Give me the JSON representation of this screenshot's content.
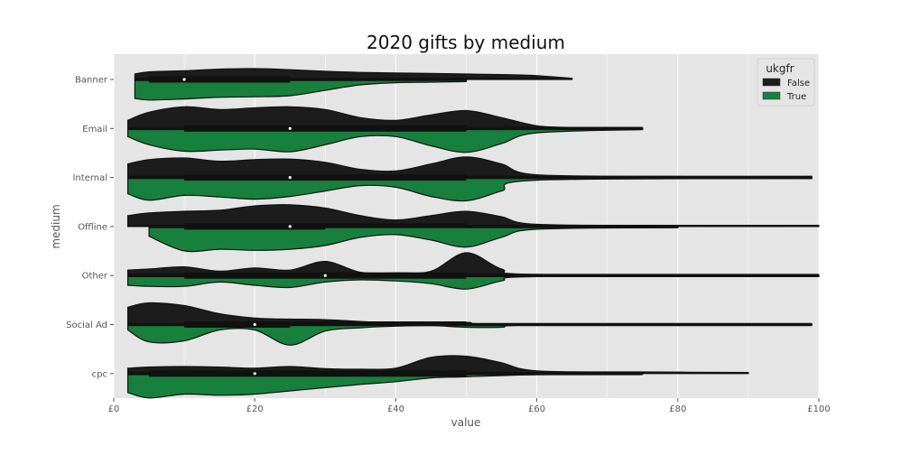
{
  "chart_data": {
    "type": "violin",
    "title": "2020 gifts by medium",
    "xlabel": "value",
    "ylabel": "medium",
    "xlim": [
      0,
      100
    ],
    "x_ticks": [
      0,
      20,
      40,
      60,
      80,
      100
    ],
    "x_tick_labels": [
      "£0",
      "£20",
      "£40",
      "£60",
      "£80",
      "£100"
    ],
    "grid": true,
    "split": true,
    "legend": {
      "title": "ukgfr",
      "placement": "top-right",
      "entries": [
        {
          "label": "False",
          "color": "#1c1c1c"
        },
        {
          "label": "True",
          "color": "#17803d"
        }
      ]
    },
    "categories": [
      "Banner",
      "Email",
      "Internal",
      "Offline",
      "Other",
      "Social Ad",
      "cpc"
    ],
    "series": [
      {
        "name": "False",
        "color": "#1c1c1c",
        "stats": [
          {
            "min": 3,
            "q1": 5,
            "median": 10,
            "q3": 25,
            "max": 65
          },
          {
            "min": 2,
            "q1": 10,
            "median": 25,
            "q3": 50,
            "max": 75
          },
          {
            "min": 2,
            "q1": 10,
            "median": 25,
            "q3": 50,
            "max": 99
          },
          {
            "min": 2,
            "q1": 10,
            "median": 25,
            "q3": 50,
            "max": 100
          },
          {
            "min": 2,
            "q1": 10,
            "median": 30,
            "q3": 50,
            "max": 100
          },
          {
            "min": 2,
            "q1": 10,
            "median": 20,
            "q3": 50,
            "max": 99
          },
          {
            "min": 2,
            "q1": 5,
            "median": 20,
            "q3": 50,
            "max": 90
          }
        ],
        "density": [
          [
            [
              3,
              0.1
            ],
            [
              5,
              0.14
            ],
            [
              10,
              0.16
            ],
            [
              15,
              0.19
            ],
            [
              20,
              0.2
            ],
            [
              25,
              0.18
            ],
            [
              30,
              0.15
            ],
            [
              35,
              0.13
            ],
            [
              40,
              0.12
            ],
            [
              45,
              0.11
            ],
            [
              50,
              0.1
            ],
            [
              55,
              0.09
            ],
            [
              60,
              0.07
            ],
            [
              65,
              0.02
            ]
          ],
          [
            [
              2,
              0.15
            ],
            [
              5,
              0.3
            ],
            [
              10,
              0.4
            ],
            [
              15,
              0.35
            ],
            [
              20,
              0.38
            ],
            [
              25,
              0.4
            ],
            [
              30,
              0.35
            ],
            [
              35,
              0.2
            ],
            [
              40,
              0.15
            ],
            [
              45,
              0.25
            ],
            [
              50,
              0.33
            ],
            [
              55,
              0.2
            ],
            [
              60,
              0.05
            ],
            [
              65,
              0.02
            ],
            [
              75,
              0.01
            ]
          ],
          [
            [
              2,
              0.25
            ],
            [
              5,
              0.33
            ],
            [
              10,
              0.36
            ],
            [
              15,
              0.3
            ],
            [
              20,
              0.33
            ],
            [
              25,
              0.34
            ],
            [
              30,
              0.28
            ],
            [
              35,
              0.15
            ],
            [
              40,
              0.12
            ],
            [
              45,
              0.25
            ],
            [
              50,
              0.38
            ],
            [
              55,
              0.25
            ],
            [
              60,
              0.05
            ],
            [
              80,
              0.02
            ],
            [
              99,
              0.02
            ]
          ],
          [
            [
              2,
              0.2
            ],
            [
              5,
              0.25
            ],
            [
              10,
              0.28
            ],
            [
              15,
              0.3
            ],
            [
              20,
              0.38
            ],
            [
              25,
              0.4
            ],
            [
              30,
              0.34
            ],
            [
              35,
              0.2
            ],
            [
              40,
              0.12
            ],
            [
              45,
              0.2
            ],
            [
              50,
              0.28
            ],
            [
              55,
              0.18
            ],
            [
              60,
              0.04
            ],
            [
              80,
              0.02
            ],
            [
              100,
              0.02
            ]
          ],
          [
            [
              2,
              0.1
            ],
            [
              5,
              0.12
            ],
            [
              10,
              0.16
            ],
            [
              15,
              0.08
            ],
            [
              20,
              0.14
            ],
            [
              25,
              0.1
            ],
            [
              30,
              0.26
            ],
            [
              35,
              0.06
            ],
            [
              40,
              0.05
            ],
            [
              45,
              0.08
            ],
            [
              50,
              0.42
            ],
            [
              55,
              0.12
            ],
            [
              60,
              0.02
            ],
            [
              100,
              0.01
            ]
          ],
          [
            [
              2,
              0.32
            ],
            [
              5,
              0.4
            ],
            [
              10,
              0.35
            ],
            [
              15,
              0.2
            ],
            [
              20,
              0.12
            ],
            [
              25,
              0.1
            ],
            [
              30,
              0.09
            ],
            [
              40,
              0.03
            ],
            [
              50,
              0.04
            ],
            [
              55,
              0.01
            ],
            [
              99,
              0.01
            ]
          ],
          [
            [
              2,
              0.1
            ],
            [
              5,
              0.12
            ],
            [
              10,
              0.13
            ],
            [
              15,
              0.12
            ],
            [
              20,
              0.1
            ],
            [
              25,
              0.13
            ],
            [
              30,
              0.09
            ],
            [
              35,
              0.08
            ],
            [
              40,
              0.1
            ],
            [
              45,
              0.3
            ],
            [
              50,
              0.32
            ],
            [
              55,
              0.2
            ],
            [
              60,
              0.05
            ],
            [
              75,
              0.03
            ],
            [
              90,
              0.02
            ]
          ]
        ]
      },
      {
        "name": "True",
        "color": "#17803d",
        "stats": [
          {
            "min": 3,
            "q1": 5,
            "median": 10,
            "q3": 25,
            "max": 50
          },
          {
            "min": 2,
            "q1": 10,
            "median": 25,
            "q3": 50,
            "max": 75
          },
          {
            "min": 2,
            "q1": 10,
            "median": 25,
            "q3": 50,
            "max": 99
          },
          {
            "min": 5,
            "q1": 10,
            "median": 25,
            "q3": 30,
            "max": 80
          },
          {
            "min": 2,
            "q1": 10,
            "median": 30,
            "q3": 50,
            "max": 100
          },
          {
            "min": 2,
            "q1": 10,
            "median": 20,
            "q3": 25,
            "max": 99
          },
          {
            "min": 2,
            "q1": 5,
            "median": 20,
            "q3": 50,
            "max": 75
          }
        ],
        "density": [
          [
            [
              3,
              0.35
            ],
            [
              5,
              0.38
            ],
            [
              10,
              0.36
            ],
            [
              15,
              0.33
            ],
            [
              20,
              0.32
            ],
            [
              25,
              0.3
            ],
            [
              30,
              0.2
            ],
            [
              35,
              0.1
            ],
            [
              40,
              0.06
            ],
            [
              45,
              0.05
            ],
            [
              50,
              0.04
            ]
          ],
          [
            [
              2,
              0.15
            ],
            [
              5,
              0.3
            ],
            [
              10,
              0.42
            ],
            [
              15,
              0.4
            ],
            [
              20,
              0.38
            ],
            [
              25,
              0.43
            ],
            [
              30,
              0.3
            ],
            [
              35,
              0.15
            ],
            [
              40,
              0.15
            ],
            [
              45,
              0.32
            ],
            [
              50,
              0.44
            ],
            [
              55,
              0.28
            ],
            [
              60,
              0.08
            ],
            [
              75,
              0.02
            ]
          ],
          [
            [
              2,
              0.3
            ],
            [
              5,
              0.42
            ],
            [
              10,
              0.33
            ],
            [
              15,
              0.36
            ],
            [
              20,
              0.4
            ],
            [
              25,
              0.35
            ],
            [
              30,
              0.25
            ],
            [
              35,
              0.15
            ],
            [
              40,
              0.18
            ],
            [
              45,
              0.35
            ],
            [
              50,
              0.43
            ],
            [
              55,
              0.25
            ],
            [
              60,
              0.05
            ],
            [
              99,
              0.02
            ]
          ],
          [
            [
              5,
              0.18
            ],
            [
              10,
              0.45
            ],
            [
              15,
              0.42
            ],
            [
              20,
              0.44
            ],
            [
              25,
              0.42
            ],
            [
              30,
              0.35
            ],
            [
              35,
              0.2
            ],
            [
              40,
              0.15
            ],
            [
              45,
              0.25
            ],
            [
              50,
              0.38
            ],
            [
              55,
              0.2
            ],
            [
              60,
              0.05
            ],
            [
              80,
              0.02
            ]
          ],
          [
            [
              2,
              0.18
            ],
            [
              5,
              0.2
            ],
            [
              10,
              0.2
            ],
            [
              15,
              0.12
            ],
            [
              20,
              0.18
            ],
            [
              25,
              0.22
            ],
            [
              30,
              0.12
            ],
            [
              35,
              0.08
            ],
            [
              40,
              0.1
            ],
            [
              45,
              0.15
            ],
            [
              50,
              0.25
            ],
            [
              55,
              0.1
            ],
            [
              60,
              0.02
            ],
            [
              100,
              0.02
            ]
          ],
          [
            [
              2,
              0.1
            ],
            [
              5,
              0.32
            ],
            [
              10,
              0.3
            ],
            [
              15,
              0.1
            ],
            [
              20,
              0.1
            ],
            [
              25,
              0.38
            ],
            [
              30,
              0.12
            ],
            [
              35,
              0.06
            ],
            [
              40,
              0.03
            ],
            [
              45,
              0.02
            ],
            [
              50,
              0.05
            ],
            [
              55,
              0.05
            ],
            [
              60,
              0.01
            ],
            [
              99,
              0.01
            ]
          ],
          [
            [
              2,
              0.35
            ],
            [
              5,
              0.45
            ],
            [
              10,
              0.38
            ],
            [
              15,
              0.4
            ],
            [
              20,
              0.38
            ],
            [
              25,
              0.32
            ],
            [
              30,
              0.26
            ],
            [
              35,
              0.2
            ],
            [
              40,
              0.15
            ],
            [
              45,
              0.08
            ],
            [
              50,
              0.06
            ],
            [
              60,
              0.02
            ],
            [
              75,
              0.01
            ]
          ]
        ]
      }
    ]
  }
}
